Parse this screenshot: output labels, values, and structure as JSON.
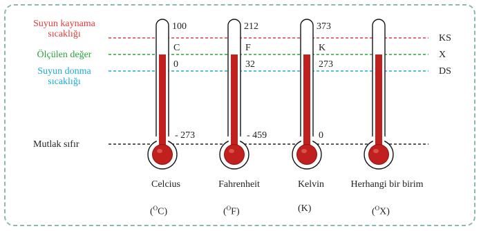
{
  "rows": {
    "boiling": {
      "label_line1": "Suyun kaynama",
      "label_line2": "sıcaklığı",
      "code": "KS",
      "color": "#e23a3a"
    },
    "measured": {
      "label": "Ölçülen değer",
      "code": "X",
      "color": "#2aa33a"
    },
    "freezing": {
      "label_line1": "Suyun donma",
      "label_line2": "sıcaklığı",
      "code": "DS",
      "color": "#1aaad8"
    },
    "absolute_zero": {
      "label": "Mutlak sıfır",
      "color": "#222222"
    }
  },
  "thermometers": [
    {
      "name": "Celcius",
      "symbol_sup": "O",
      "symbol_tail": "C)",
      "unit_letter": "C",
      "boiling": "100",
      "freezing": "0",
      "absolute_zero": "- 273"
    },
    {
      "name": "Fahrenheit",
      "symbol_sup": "O",
      "symbol_tail": "F)",
      "unit_letter": "F",
      "boiling": "212",
      "freezing": "32",
      "absolute_zero": "- 459"
    },
    {
      "name": "Kelvin",
      "symbol_sup": "",
      "symbol_tail": "(K)",
      "unit_letter": "K",
      "boiling": "373",
      "freezing": "273",
      "absolute_zero": "0"
    },
    {
      "name": "Herhangi bir birim",
      "symbol_sup": "O",
      "symbol_tail": "X)",
      "unit_letter": "",
      "boiling": "",
      "freezing": "",
      "absolute_zero": ""
    }
  ],
  "colors": {
    "mercury": "#c0201e",
    "mercury_dark": "#8f1412",
    "border": "#8ab9a7"
  }
}
